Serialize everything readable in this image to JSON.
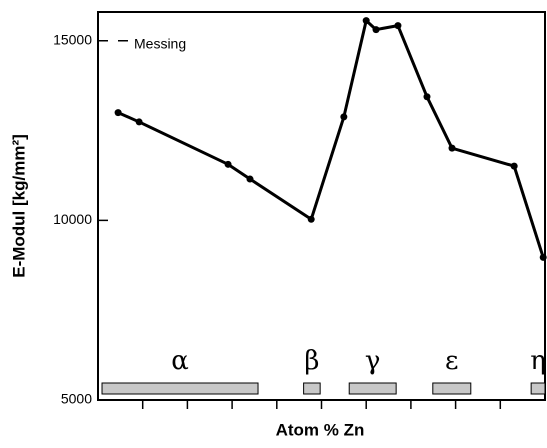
{
  "chart_data": {
    "type": "line",
    "x_label": "Atom % Zn",
    "y_label": "E-Modul [kg/mm²]",
    "x": [
      4.5,
      9.2,
      29.1,
      34,
      47.7,
      55,
      60,
      62.2,
      67.1,
      73.6,
      79.2,
      93.1,
      99.6
    ],
    "values": [
      13000,
      12740,
      11560,
      11150,
      10030,
      12880,
      15560,
      15310,
      15420,
      13440,
      12010,
      11510,
      8970
    ],
    "color": "#000000",
    "xlim": [
      0,
      100
    ],
    "xticks": [
      10,
      20,
      30,
      40,
      50,
      60,
      70,
      80,
      90
    ],
    "ylim": [
      5000,
      15800
    ],
    "yticks": [
      5000,
      10000,
      15000
    ],
    "annotation": {
      "text": "Messing",
      "value": 15000
    },
    "phases": [
      {
        "label": "α",
        "range": [
          0.9,
          35.8
        ]
      },
      {
        "label": "β",
        "range": [
          46,
          49.7
        ]
      },
      {
        "label": "γ",
        "range": [
          56.2,
          66.7
        ]
      },
      {
        "label": "ε",
        "range": [
          74.9,
          83.4
        ]
      },
      {
        "label": "η",
        "range": [
          96.9,
          100
        ]
      }
    ],
    "phase_color": "#c8c8c8"
  }
}
